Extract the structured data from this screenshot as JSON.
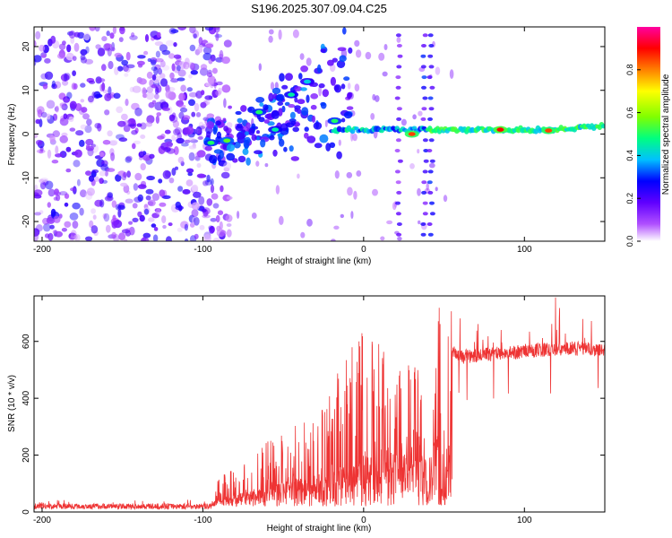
{
  "title": "S196.2025.307.09.04.C25",
  "chart_data": [
    {
      "type": "heatmap",
      "xlabel": "Height of straight line (km)",
      "ylabel": "Frequency (Hz)",
      "xlim": [
        -205,
        150
      ],
      "ylim": [
        -24.5,
        24.5
      ],
      "x_ticks": [
        -200,
        -100,
        0,
        100
      ],
      "y_ticks": [
        -20,
        -10,
        0,
        10,
        20
      ],
      "colorbar": {
        "label": "Normalized spectral amplitude",
        "range": [
          0,
          1
        ],
        "ticks": [
          0.0,
          0.2,
          0.4,
          0.6,
          0.8
        ],
        "tick_labels": [
          "0.0",
          "0.2",
          "0.4",
          "0.6",
          "0.8"
        ],
        "colors": [
          "#ffffff",
          "#b050ff",
          "#6000ff",
          "#0000ff",
          "#00c0ff",
          "#00ff80",
          "#80ff00",
          "#ffff00",
          "#ff8000",
          "#ff0000",
          "#ff00a0"
        ]
      },
      "features": [
        {
          "x_range": [
            -205,
            -95
          ],
          "description_value": 0.25
        },
        {
          "x": -95,
          "f": -2,
          "amp": 0.5
        },
        {
          "x": -85,
          "f": -1.5,
          "amp": 0.55
        },
        {
          "x": -65,
          "f": 5,
          "amp": 0.5
        },
        {
          "x": -55,
          "f": 1,
          "amp": 0.45
        },
        {
          "x": -45,
          "f": 9,
          "amp": 0.45
        },
        {
          "x": -35,
          "f": 12,
          "amp": 0.4
        },
        {
          "x": -18,
          "f": 3,
          "amp": 0.5
        },
        {
          "x": 30,
          "f": 0,
          "amp": 0.85
        },
        {
          "x": 85,
          "f": 1,
          "amp": 0.9
        },
        {
          "x": 115,
          "f": 0.8,
          "amp": 0.85
        }
      ]
    },
    {
      "type": "line",
      "xlabel": "Height of straight line (km)",
      "ylabel": "SNR (10 * v/v)",
      "xlim": [
        -205,
        150
      ],
      "ylim": [
        0,
        760
      ],
      "x_ticks": [
        -200,
        -100,
        0,
        100
      ],
      "y_ticks": [
        0,
        200,
        400,
        600
      ],
      "color": "#ee3333",
      "series": [
        {
          "name": "SNR",
          "x": [
            -205,
            -100,
            -90,
            -80,
            -70,
            -60,
            -50,
            -40,
            -30,
            -20,
            -10,
            0,
            10,
            20,
            30,
            35,
            40,
            45,
            50,
            55,
            60,
            80,
            100,
            120,
            140,
            150
          ],
          "y": [
            20,
            20,
            40,
            70,
            90,
            110,
            140,
            170,
            190,
            210,
            240,
            300,
            330,
            360,
            400,
            500,
            60,
            480,
            60,
            560,
            540,
            550,
            560,
            570,
            570,
            560
          ],
          "peaks_y": [
            45,
            50,
            120,
            170,
            210,
            250,
            280,
            330,
            380,
            450,
            560,
            690,
            610,
            520,
            540,
            500,
            70,
            700,
            760,
            760,
            700,
            680,
            700,
            760,
            690,
            680
          ]
        }
      ]
    }
  ]
}
